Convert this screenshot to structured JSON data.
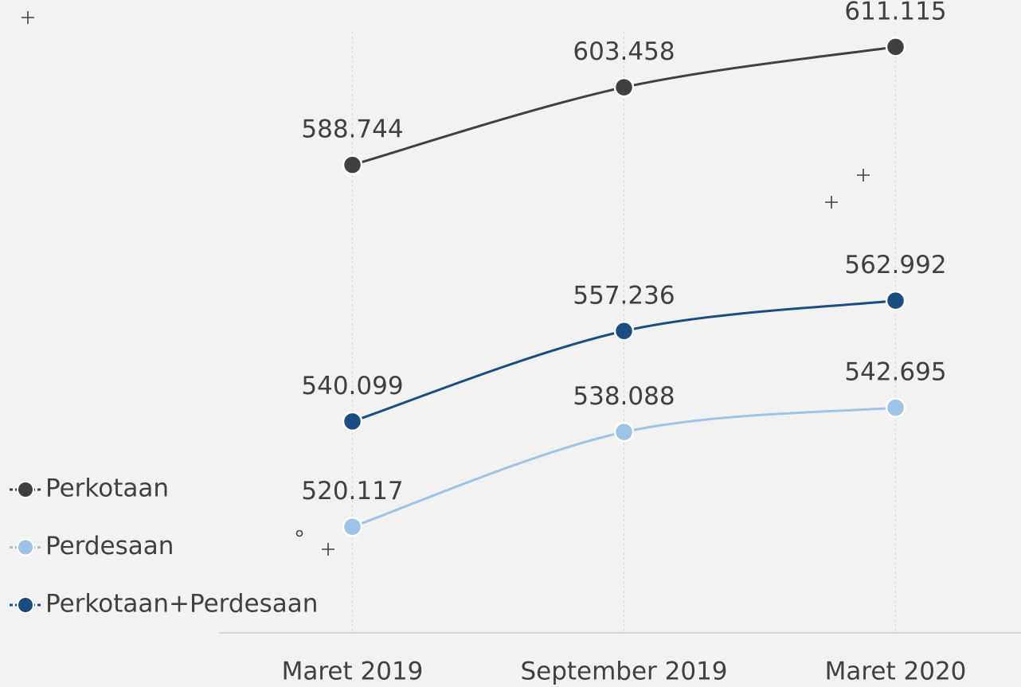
{
  "chart_data": {
    "type": "line",
    "categories": [
      "Maret 2019",
      "September 2019",
      "Maret 2020"
    ],
    "series": [
      {
        "name": "Perkotaan",
        "color": "#404040",
        "values": [
          588744,
          603458,
          611115
        ],
        "value_labels": [
          "588.744",
          "603.458",
          "611.115"
        ]
      },
      {
        "name": "Perdesaan",
        "color": "#9dc3e6",
        "values": [
          520117,
          538088,
          542695
        ],
        "value_labels": [
          "520.117",
          "538.088",
          "542.695"
        ]
      },
      {
        "name": "Perkotaan+Perdesaan",
        "color": "#1a4e82",
        "values": [
          540099,
          557236,
          562992
        ],
        "value_labels": [
          "540.099",
          "557.236",
          "562.992"
        ]
      }
    ],
    "ylim": [
      500000,
      620000
    ],
    "legend": "left"
  }
}
